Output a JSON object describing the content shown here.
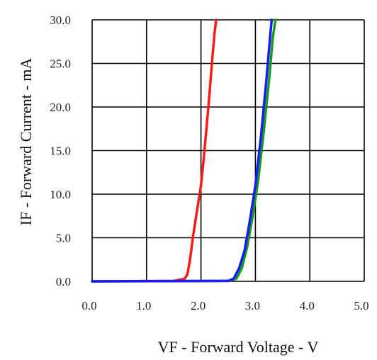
{
  "chart_data": {
    "type": "line",
    "title": "",
    "xlabel": "VF - Forward Voltage - V",
    "ylabel": "IF - Forward Current - mA",
    "xlim": [
      0,
      5
    ],
    "ylim": [
      0,
      30
    ],
    "x_ticks": [
      "0.0",
      "1.0",
      "2.0",
      "3.0",
      "4.0",
      "5.0"
    ],
    "y_ticks": [
      "0.0",
      "5.0",
      "10.0",
      "15.0",
      "20.0",
      "25.0",
      "30.0"
    ],
    "grid": true,
    "legend": "none",
    "series": [
      {
        "color": "#ff1a1a",
        "points": [
          [
            0.0,
            0.0
          ],
          [
            1.5,
            0.05
          ],
          [
            1.7,
            0.3
          ],
          [
            1.75,
            0.8
          ],
          [
            1.8,
            2.5
          ],
          [
            1.85,
            5.0
          ],
          [
            1.9,
            7.0
          ],
          [
            1.95,
            9.0
          ],
          [
            2.0,
            11.0
          ],
          [
            2.05,
            14.0
          ],
          [
            2.1,
            17.5
          ],
          [
            2.15,
            21.0
          ],
          [
            2.2,
            25.0
          ],
          [
            2.25,
            28.5
          ],
          [
            2.28,
            30.0
          ]
        ]
      },
      {
        "color": "#1a9a1a",
        "points": [
          [
            0.0,
            0.0
          ],
          [
            2.5,
            0.05
          ],
          [
            2.65,
            0.3
          ],
          [
            2.75,
            1.5
          ],
          [
            2.85,
            4.0
          ],
          [
            2.95,
            7.5
          ],
          [
            3.05,
            11.5
          ],
          [
            3.15,
            17.0
          ],
          [
            3.25,
            23.0
          ],
          [
            3.32,
            28.0
          ],
          [
            3.37,
            30.0
          ]
        ]
      },
      {
        "color": "#1a1aff",
        "points": [
          [
            0.0,
            0.0
          ],
          [
            2.5,
            0.05
          ],
          [
            2.6,
            0.3
          ],
          [
            2.7,
            1.5
          ],
          [
            2.8,
            3.5
          ],
          [
            2.9,
            7.0
          ],
          [
            3.0,
            11.0
          ],
          [
            3.1,
            16.5
          ],
          [
            3.2,
            23.0
          ],
          [
            3.27,
            28.0
          ],
          [
            3.3,
            30.0
          ]
        ]
      }
    ]
  }
}
